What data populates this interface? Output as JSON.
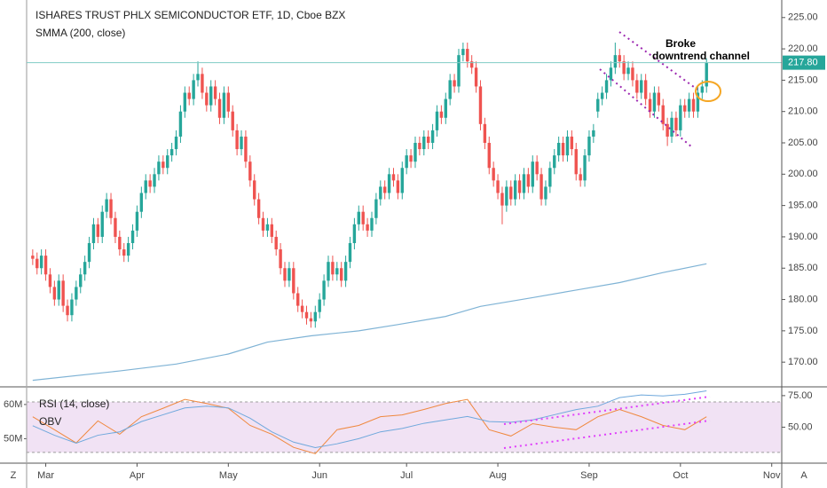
{
  "header": {
    "title": "ISHARES TRUST PHLX SEMICONDUCTOR ETF, 1D, Cboe BZX"
  },
  "toolbar": {
    "left": "Z",
    "right": "A"
  },
  "chart_data": [
    {
      "type": "candlestick",
      "up_color": "#26a69a",
      "down_color": "#ef5350",
      "xlim": [
        -1.4,
        172.1
      ],
      "xticks": [
        {
          "value": 3,
          "label": "Mar"
        },
        {
          "value": 24,
          "label": "Apr"
        },
        {
          "value": 45,
          "label": "May"
        },
        {
          "value": 66,
          "label": "Jun"
        },
        {
          "value": 86,
          "label": "Jul"
        },
        {
          "value": 107,
          "label": "Aug"
        },
        {
          "value": 128,
          "label": "Sep"
        },
        {
          "value": 149,
          "label": "Oct"
        },
        {
          "value": 170,
          "label": "Nov"
        }
      ],
      "ylim": [
        166.2,
        227.8
      ],
      "yticks": [
        {
          "value": 170,
          "label": "170.00"
        },
        {
          "value": 175,
          "label": "175.00"
        },
        {
          "value": 180,
          "label": "180.00"
        },
        {
          "value": 185,
          "label": "185.00"
        },
        {
          "value": 190,
          "label": "190.00"
        },
        {
          "value": 195,
          "label": "195.00"
        },
        {
          "value": 200,
          "label": "200.00"
        },
        {
          "value": 205,
          "label": "205.00"
        },
        {
          "value": 210,
          "label": "210.00"
        },
        {
          "value": 215,
          "label": "215.00"
        },
        {
          "value": 220,
          "label": "220.00"
        },
        {
          "value": 225,
          "label": "225.00"
        }
      ],
      "last_price": 217.8,
      "last_price_label": "217.80",
      "last_price_color": "#26a69a",
      "annotation": [
        "Broke",
        "downtrend channel"
      ],
      "ohlc": [
        [
          187,
          188,
          185.5,
          186.5
        ],
        [
          186.5,
          187.5,
          184,
          185
        ],
        [
          185,
          188,
          184,
          187
        ],
        [
          187,
          188,
          183,
          184
        ],
        [
          184,
          185,
          181,
          182
        ],
        [
          182,
          183,
          179,
          180
        ],
        [
          180,
          184,
          179,
          183
        ],
        [
          183,
          184,
          178,
          179
        ],
        [
          179,
          180,
          176.5,
          177.5
        ],
        [
          177.5,
          181,
          176.5,
          180
        ],
        [
          180,
          183,
          179,
          182
        ],
        [
          182,
          185,
          181,
          184
        ],
        [
          184,
          187,
          183,
          186
        ],
        [
          186,
          190,
          185,
          189
        ],
        [
          189,
          193,
          188,
          192
        ],
        [
          192,
          193,
          189,
          190
        ],
        [
          190,
          195,
          189,
          194
        ],
        [
          194,
          197,
          193,
          196
        ],
        [
          196,
          197,
          192,
          193
        ],
        [
          193,
          194,
          189,
          190
        ],
        [
          190,
          191,
          187,
          188
        ],
        [
          188,
          189,
          186,
          187
        ],
        [
          187,
          190,
          186,
          189
        ],
        [
          189,
          192,
          188,
          191
        ],
        [
          191,
          195,
          190,
          194
        ],
        [
          194,
          198,
          193,
          197
        ],
        [
          197,
          200,
          196,
          199
        ],
        [
          199,
          200,
          197,
          198
        ],
        [
          198,
          201,
          197,
          200
        ],
        [
          200,
          203,
          199,
          202
        ],
        [
          202,
          203,
          200,
          201
        ],
        [
          201,
          204,
          200,
          203
        ],
        [
          203,
          205,
          202,
          204
        ],
        [
          204,
          207,
          203,
          206
        ],
        [
          206,
          211,
          205,
          210
        ],
        [
          210,
          214,
          209,
          213
        ],
        [
          213,
          214,
          211,
          212
        ],
        [
          212,
          216,
          211,
          215
        ],
        [
          215,
          218,
          214,
          216
        ],
        [
          216,
          217,
          212,
          213
        ],
        [
          213,
          214,
          210,
          211
        ],
        [
          211,
          215,
          210,
          214
        ],
        [
          214,
          215,
          211,
          212
        ],
        [
          212,
          213,
          208,
          209
        ],
        [
          209,
          214,
          208,
          213
        ],
        [
          213,
          214,
          209,
          210
        ],
        [
          210,
          211,
          206,
          207
        ],
        [
          207,
          208,
          203,
          204
        ],
        [
          204,
          207,
          203,
          206
        ],
        [
          206,
          207,
          201,
          202
        ],
        [
          202,
          203,
          198,
          199
        ],
        [
          199,
          200,
          195,
          196
        ],
        [
          196,
          197,
          192,
          193
        ],
        [
          193,
          194,
          190,
          191
        ],
        [
          191,
          193,
          190,
          192
        ],
        [
          192,
          193,
          189,
          190
        ],
        [
          190,
          191,
          187,
          188
        ],
        [
          188,
          189,
          184,
          185
        ],
        [
          185,
          186,
          182,
          183
        ],
        [
          183,
          186,
          182,
          185
        ],
        [
          185,
          186,
          180,
          181
        ],
        [
          181,
          182,
          178,
          179
        ],
        [
          179,
          180,
          177,
          178
        ],
        [
          178,
          179,
          176,
          177
        ],
        [
          177,
          178,
          175.5,
          176.5
        ],
        [
          176.5,
          179,
          175.5,
          178
        ],
        [
          178,
          181,
          177,
          180
        ],
        [
          180,
          184,
          179,
          183
        ],
        [
          183,
          187,
          182,
          186
        ],
        [
          186,
          187,
          183,
          184
        ],
        [
          184,
          186,
          183,
          185
        ],
        [
          185,
          186,
          182,
          183
        ],
        [
          183,
          187,
          182,
          186
        ],
        [
          186,
          190,
          185,
          189
        ],
        [
          189,
          193,
          188,
          192
        ],
        [
          192,
          195,
          191,
          194
        ],
        [
          194,
          195,
          191,
          192
        ],
        [
          192,
          193,
          190,
          191
        ],
        [
          191,
          194,
          190,
          193
        ],
        [
          193,
          197,
          192,
          196
        ],
        [
          196,
          199,
          195,
          198
        ],
        [
          198,
          199,
          196,
          197
        ],
        [
          197,
          201,
          196,
          200
        ],
        [
          200,
          201,
          198,
          199
        ],
        [
          199,
          200,
          196,
          197
        ],
        [
          197,
          202,
          196,
          201
        ],
        [
          201,
          204,
          200,
          203
        ],
        [
          203,
          204,
          201,
          202
        ],
        [
          202,
          206,
          201,
          205
        ],
        [
          205,
          206,
          203,
          204
        ],
        [
          204,
          207,
          203,
          206
        ],
        [
          206,
          207,
          204,
          205
        ],
        [
          205,
          208,
          204,
          207
        ],
        [
          207,
          211,
          206,
          210
        ],
        [
          210,
          211,
          208,
          209
        ],
        [
          209,
          213,
          208,
          212
        ],
        [
          212,
          216,
          211,
          215
        ],
        [
          215,
          216,
          213,
          214
        ],
        [
          214,
          220,
          213,
          219
        ],
        [
          219,
          221,
          218,
          220
        ],
        [
          220,
          221,
          217,
          218
        ],
        [
          218,
          219,
          216,
          217
        ],
        [
          217,
          218,
          213,
          214
        ],
        [
          214,
          215,
          207,
          208
        ],
        [
          208,
          209,
          204,
          205
        ],
        [
          205,
          206,
          200,
          201
        ],
        [
          201,
          202,
          198,
          199
        ],
        [
          199,
          200,
          196,
          197
        ],
        [
          197,
          198,
          192,
          195
        ],
        [
          195,
          199,
          194,
          198
        ],
        [
          198,
          199,
          195,
          196
        ],
        [
          196,
          200,
          195,
          199
        ],
        [
          199,
          200,
          196,
          197
        ],
        [
          197,
          201,
          196,
          200
        ],
        [
          200,
          201,
          197,
          198
        ],
        [
          198,
          203,
          197,
          202
        ],
        [
          202,
          203,
          199,
          200
        ],
        [
          200,
          201,
          195,
          196
        ],
        [
          196,
          199,
          195,
          198
        ],
        [
          198,
          202,
          197,
          201
        ],
        [
          201,
          204,
          200,
          203
        ],
        [
          203,
          206,
          202,
          205
        ],
        [
          205,
          206,
          202,
          203
        ],
        [
          203,
          207,
          202,
          206
        ],
        [
          206,
          207,
          203,
          204
        ],
        [
          204,
          205,
          199,
          200
        ],
        [
          200,
          201,
          198,
          199
        ],
        [
          199,
          204,
          198,
          203
        ],
        [
          203,
          207,
          202,
          206
        ],
        [
          206,
          208,
          205,
          207
        ],
        [
          210,
          213,
          209,
          212
        ],
        [
          212,
          214,
          211,
          213
        ],
        [
          213,
          216,
          212,
          215
        ],
        [
          215,
          218,
          214,
          217
        ],
        [
          217,
          221,
          216,
          219
        ],
        [
          219,
          220,
          217,
          218
        ],
        [
          218,
          219,
          215,
          216
        ],
        [
          216,
          218,
          215,
          217
        ],
        [
          217,
          218,
          214,
          215
        ],
        [
          215,
          216,
          212,
          213
        ],
        [
          213,
          216,
          212,
          215
        ],
        [
          215,
          216,
          211,
          212
        ],
        [
          212,
          213,
          209,
          210
        ],
        [
          210,
          214,
          209,
          213
        ],
        [
          213,
          214,
          210,
          211
        ],
        [
          211,
          212,
          207,
          208
        ],
        [
          208,
          209,
          204.5,
          206
        ],
        [
          206,
          210,
          205,
          209
        ],
        [
          209,
          210,
          206,
          207
        ],
        [
          207,
          212,
          206,
          211
        ],
        [
          211,
          212,
          209,
          210
        ],
        [
          210,
          213,
          209,
          212
        ],
        [
          212,
          213,
          209,
          210
        ],
        [
          210,
          214,
          209,
          213
        ],
        [
          213,
          215,
          212,
          214
        ],
        [
          214,
          218.5,
          213,
          217.8
        ]
      ],
      "series": [
        {
          "name": "SMMA (200, close)",
          "color": "#7fb3d5",
          "x": [
            0,
            20,
            33,
            45,
            54,
            64,
            75,
            84,
            95,
            103,
            115,
            125,
            135,
            145,
            155
          ],
          "values": [
            167.1,
            168.6,
            169.7,
            171.3,
            173.2,
            174.2,
            175.0,
            176.0,
            177.3,
            178.9,
            180.3,
            181.5,
            182.7,
            184.3,
            185.7
          ]
        }
      ]
    },
    {
      "type": "line",
      "xlim": [
        -1.4,
        172.1
      ],
      "ylim": [
        43.1,
        64.9
      ],
      "yticks": [
        {
          "value": 50,
          "label": "50M"
        },
        {
          "value": 60,
          "label": "60M"
        }
      ],
      "y2lim": [
        22.2,
        81.25
      ],
      "y2ticks": [
        {
          "value": 50,
          "label": "50.00"
        },
        {
          "value": 75,
          "label": "75.00"
        }
      ],
      "band": [
        30,
        70
      ],
      "band_color": "#e1bee7",
      "series": [
        {
          "name": "RSI (14, close)",
          "color": "#f0883e",
          "axis": "y2",
          "x": [
            0,
            5,
            10,
            15,
            20,
            25,
            30,
            35,
            40,
            45,
            50,
            55,
            60,
            65,
            70,
            75,
            80,
            85,
            90,
            95,
            100,
            105,
            110,
            115,
            120,
            125,
            130,
            135,
            140,
            145,
            150,
            155
          ],
          "values": [
            58.3,
            48,
            37.5,
            55,
            44.4,
            58.3,
            65,
            72,
            68.8,
            65,
            51.4,
            44.4,
            34,
            29,
            48,
            51.4,
            58.3,
            59.7,
            64,
            68.8,
            72,
            48,
            43,
            52.8,
            50,
            48,
            58.3,
            64,
            58.3,
            51.4,
            48,
            58.3
          ]
        },
        {
          "name": "OBV",
          "color": "#6fa8dc",
          "axis": "y",
          "x": [
            0,
            5,
            10,
            15,
            20,
            25,
            30,
            35,
            40,
            45,
            50,
            55,
            60,
            65,
            70,
            75,
            80,
            85,
            90,
            95,
            100,
            105,
            110,
            115,
            120,
            125,
            130,
            135,
            140,
            145,
            150,
            155
          ],
          "values": [
            53.8,
            51,
            48.7,
            51,
            52,
            55,
            57,
            59,
            59.5,
            59,
            56,
            52,
            49,
            47.4,
            48.5,
            50,
            52,
            53,
            54.5,
            55.5,
            56.5,
            55,
            54.8,
            55.5,
            57,
            58.5,
            59.5,
            62,
            62.8,
            62.5,
            63,
            64
          ]
        }
      ]
    }
  ]
}
